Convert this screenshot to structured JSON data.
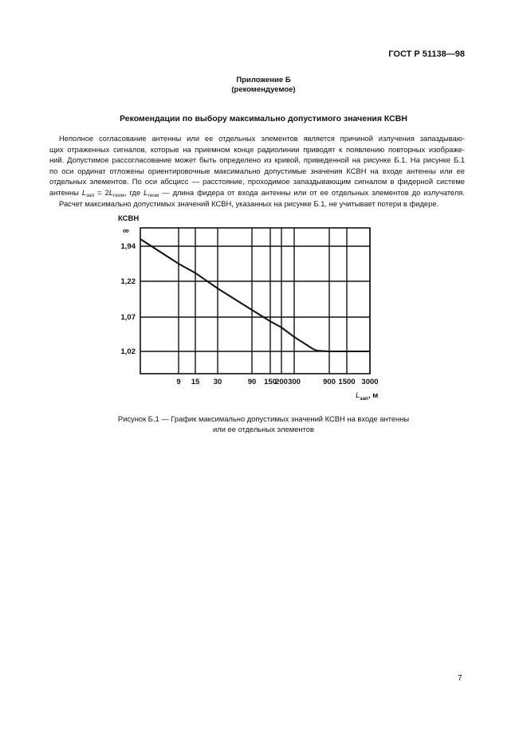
{
  "header": {
    "doc_code": "ГОСТ Р 51138—98"
  },
  "appendix": {
    "title": "Приложение Б",
    "status": "(рекомендуемое)"
  },
  "section_title": "Рекомендации по выбору максимально допустимого значения КСВН",
  "body": {
    "lines": [
      "Неполное согласование антенны или ее отдельных элементов является причиной излучения запаздываю-",
      "щих отраженных сигналов, которые на приемном конце радиолинии приводят к появлению повторных изображе-",
      "ний. Допустимое рассогласование может быть определено из кривой, приведенной на рисунке Б.1. На рисунке Б.1",
      "по оси ординат отложены ориентировочные максимально допустимые значения КСВН на входе антенны или ее",
      "отдельных элементов. По оси абсцисс — расстояние, проходимое запаздывающим сигналом в фидерной системе"
    ],
    "formula_line": {
      "p1": "антенны ",
      "L1": "L",
      "sub1": "зап",
      "p2": " = 2",
      "L2": "L",
      "sub2": "геом",
      "p3": ", где ",
      "L3": "L",
      "sub3": "геом",
      "p4": " — длина фидера от входа антенны или от ее отдельных элементов до излучателя."
    },
    "last_line": "Расчет максимально допустимых значений КСВН, указанных на рисунке Б.1, не учитывает потери в фидере."
  },
  "chart_data": {
    "type": "line",
    "ylabel": "КСВН",
    "xlabel_main": "L",
    "xlabel_sub": "зап",
    "xlabel_unit": ", м",
    "y_top_label": "∞",
    "x_ticks": [
      9,
      15,
      30,
      90,
      150,
      200,
      300,
      900,
      1500,
      3000
    ],
    "y_ticks": [
      1.02,
      1.07,
      1.22,
      1.94
    ],
    "y_tick_labels": [
      "1,02",
      "1,07",
      "1,22",
      "1,94"
    ],
    "grid": true,
    "curve": [
      {
        "x": 2.7,
        "y": 2.5
      },
      {
        "x": 9,
        "y": 1.58
      },
      {
        "x": 15,
        "y": 1.39
      },
      {
        "x": 30,
        "y": 1.19
      },
      {
        "x": 90,
        "y": 1.1
      },
      {
        "x": 150,
        "y": 1.064
      },
      {
        "x": 200,
        "y": 1.055
      },
      {
        "x": 300,
        "y": 1.041
      },
      {
        "x": 550,
        "y": 1.023
      },
      {
        "x": 620,
        "y": 1.021
      },
      {
        "x": 900,
        "y": 1.02
      },
      {
        "x": 3000,
        "y": 1.02
      }
    ]
  },
  "caption": {
    "line1": "Рисунок Б.1 — График максимально допустимых значений КСВН на входе антенны",
    "line2": "или ее отдельных элементов"
  },
  "page_number": "7"
}
